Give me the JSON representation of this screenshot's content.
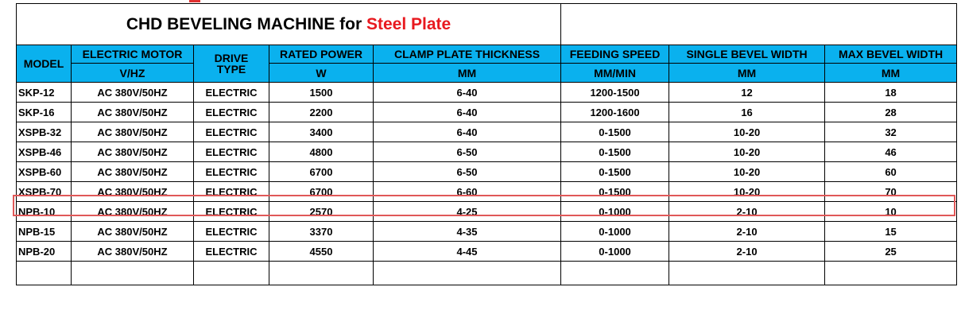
{
  "title": {
    "main": "CHD BEVELING MACHINE for",
    "accent": "Steel Plate"
  },
  "colors": {
    "header_bg": "#0ab1ee",
    "accent": "#e8191f",
    "highlight_border": "#e05858"
  },
  "headers": {
    "model": "MODEL",
    "motor": "ELECTRIC MOTOR",
    "drive_line1": "DRIVE",
    "drive_line2": "TYPE",
    "power": "RATED POWER",
    "clamp": "CLAMP PLATE THICKNESS",
    "speed": "FEEDING SPEED",
    "single": "SINGLE BEVEL WIDTH",
    "max": "MAX BEVEL WIDTH"
  },
  "units": {
    "motor": "V/HZ",
    "power": "W",
    "clamp": "MM",
    "speed": "MM/MIN",
    "single": "MM",
    "max": "MM"
  },
  "rows": [
    [
      "SKP-12",
      "AC 380V/50HZ",
      "ELECTRIC",
      "1500",
      "6-40",
      "1200-1500",
      "12",
      "18"
    ],
    [
      "SKP-16",
      "AC 380V/50HZ",
      "ELECTRIC",
      "2200",
      "6-40",
      "1200-1600",
      "16",
      "28"
    ],
    [
      "XSPB-32",
      "AC 380V/50HZ",
      "ELECTRIC",
      "3400",
      "6-40",
      "0-1500",
      "10-20",
      "32"
    ],
    [
      "XSPB-46",
      "AC 380V/50HZ",
      "ELECTRIC",
      "4800",
      "6-50",
      "0-1500",
      "10-20",
      "46"
    ],
    [
      "XSPB-60",
      "AC 380V/50HZ",
      "ELECTRIC",
      "6700",
      "6-50",
      "0-1500",
      "10-20",
      "60"
    ],
    [
      "XSPB-70",
      "AC 380V/50HZ",
      "ELECTRIC",
      "6700",
      "6-60",
      "0-1500",
      "10-20",
      "70"
    ],
    [
      "NPB-10",
      "AC 380V/50HZ",
      "ELECTRIC",
      "2570",
      "4-25",
      "0-1000",
      "2-10",
      "10"
    ],
    [
      "NPB-15",
      "AC 380V/50HZ",
      "ELECTRIC",
      "3370",
      "4-35",
      "0-1000",
      "2-10",
      "15"
    ],
    [
      "NPB-20",
      "AC 380V/50HZ",
      "ELECTRIC",
      "4550",
      "4-45",
      "0-1000",
      "2-10",
      "25"
    ]
  ],
  "highlighted_model": "XSPB-70"
}
